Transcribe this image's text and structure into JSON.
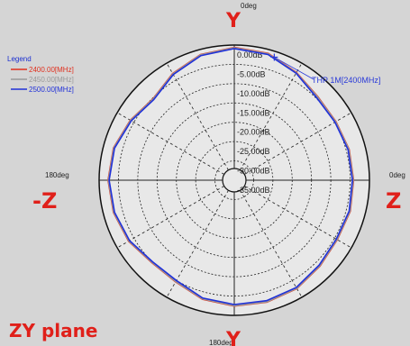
{
  "chart_data": {
    "type": "polar",
    "plane_label": "ZY plane",
    "axis_letters": {
      "top": "Y",
      "bottom": "Y",
      "left": "-Z",
      "right": "Z"
    },
    "angle_labels": {
      "top": "0deg",
      "left": "180deg",
      "right": "0deg",
      "bottom": "180deg"
    },
    "radial_unit": "dB",
    "radial_range": [
      -35,
      0
    ],
    "radial_tick_labels": [
      "0.00dB",
      "-5.00dB",
      "-10.00dB",
      "-15.00dB",
      "-20.00dB",
      "-25.00dB",
      "-30.00dB",
      "-35.00dB"
    ],
    "grid": true,
    "legend": {
      "title": "Legend",
      "placement": "top-left",
      "entries": [
        {
          "label": "2400.00[MHz]",
          "color": "#e0301e"
        },
        {
          "label": "2450.00[MHz]",
          "color": "#9a9a9a"
        },
        {
          "label": "2500.00[MHz]",
          "color": "#2030d8"
        }
      ]
    },
    "marker": {
      "label": "THP 1M[2400MHz]",
      "angle_deg": 18,
      "value_db": -1.5
    },
    "angles_deg": [
      0,
      15,
      30,
      45,
      60,
      75,
      90,
      105,
      120,
      135,
      150,
      165,
      180,
      195,
      210,
      225,
      240,
      255,
      270,
      285,
      300,
      315,
      330,
      345
    ],
    "series": [
      {
        "name": "2400.00[MHz]",
        "color": "#e0301e",
        "values": [
          -0.6,
          -1.0,
          -2.8,
          -4.4,
          -4.6,
          -4.2,
          -4.1,
          -3.9,
          -4.2,
          -3.6,
          -2.6,
          -2.3,
          -2.4,
          -3.1,
          -4.6,
          -4.8,
          -3.4,
          -2.6,
          -2.3,
          -2.6,
          -3.9,
          -5.2,
          -3.1,
          -1.3
        ]
      },
      {
        "name": "2450.00[MHz]",
        "color": "#9a9a9a",
        "values": [
          -0.7,
          -1.1,
          -2.9,
          -4.5,
          -4.7,
          -4.3,
          -4.2,
          -4.0,
          -4.3,
          -3.7,
          -2.7,
          -2.4,
          -2.5,
          -3.2,
          -4.7,
          -4.9,
          -3.5,
          -2.7,
          -2.4,
          -2.7,
          -4.0,
          -5.3,
          -3.2,
          -1.4
        ]
      },
      {
        "name": "2500.00[MHz]",
        "color": "#2030d8",
        "values": [
          -0.9,
          -1.3,
          -3.0,
          -4.8,
          -4.9,
          -4.5,
          -4.4,
          -4.2,
          -4.5,
          -3.9,
          -2.9,
          -2.7,
          -2.8,
          -3.4,
          -5.0,
          -5.1,
          -3.7,
          -2.9,
          -2.6,
          -2.9,
          -4.2,
          -5.5,
          -3.4,
          -1.6
        ]
      }
    ]
  }
}
